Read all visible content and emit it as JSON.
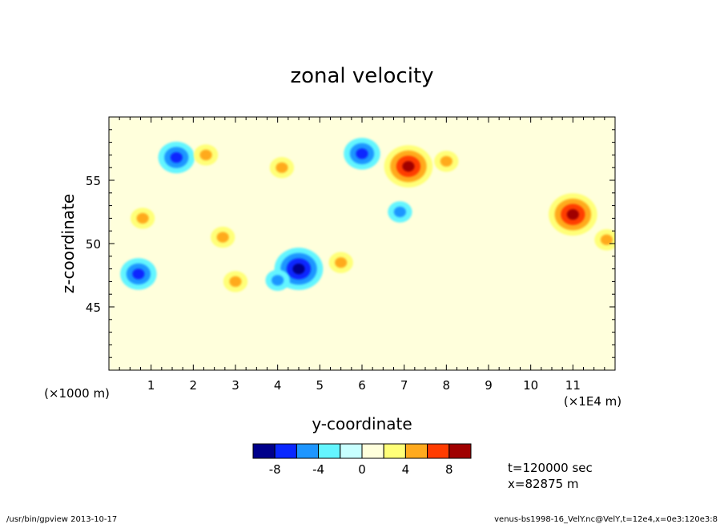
{
  "chart_data": {
    "type": "heatmap",
    "title": "zonal velocity",
    "xlabel": "y-coordinate",
    "ylabel": "z-coordinate",
    "x_scale_note": "(×1E4 m)",
    "y_scale_note": "(×1000 m)",
    "xlim": [
      0,
      12
    ],
    "ylim": [
      40,
      60
    ],
    "x_ticks": [
      1,
      2,
      3,
      4,
      5,
      6,
      7,
      8,
      9,
      10,
      11
    ],
    "y_ticks": [
      45,
      50,
      55
    ],
    "colorbar": {
      "levels": [
        -10,
        -8,
        -6,
        -4,
        -2,
        0,
        2,
        4,
        6,
        8,
        10
      ],
      "tick_labels": [
        "-8",
        "-4",
        "0",
        "4",
        "8"
      ],
      "tick_values": [
        -8,
        -4,
        0,
        4,
        8
      ],
      "colors": [
        "#00008b",
        "#0a28ff",
        "#1e96ff",
        "#64f5ff",
        "#c8ffff",
        "#ffffdc",
        "#ffff78",
        "#ffaa1e",
        "#ff3c00",
        "#a00000"
      ]
    },
    "features": [
      {
        "label": "max",
        "y": 7.1,
        "z": 56.1,
        "value": 8.5
      },
      {
        "label": "max",
        "y": 11.0,
        "z": 52.3,
        "value": 8.0
      },
      {
        "label": "min",
        "y": 4.5,
        "z": 48.0,
        "value": -8.5
      },
      {
        "label": "min",
        "y": 1.6,
        "z": 56.8,
        "value": -6.5
      },
      {
        "label": "min",
        "y": 0.7,
        "z": 47.6,
        "value": -7.0
      },
      {
        "label": "min",
        "y": 6.0,
        "z": 57.1,
        "value": -6.0
      },
      {
        "label": "max",
        "y": 0.8,
        "z": 52.0,
        "value": 5.0
      },
      {
        "label": "max",
        "y": 2.3,
        "z": 57.0,
        "value": 5.0
      },
      {
        "label": "max",
        "y": 4.1,
        "z": 56.0,
        "value": 5.0
      },
      {
        "label": "max",
        "y": 5.5,
        "z": 48.5,
        "value": 5.0
      },
      {
        "label": "max",
        "y": 8.0,
        "z": 56.5,
        "value": 5.0
      },
      {
        "label": "max",
        "y": 11.8,
        "z": 50.3,
        "value": 5.0
      },
      {
        "label": "max",
        "y": 3.0,
        "z": 47.0,
        "value": 4.5
      },
      {
        "label": "max",
        "y": 2.7,
        "z": 50.5,
        "value": 4.5
      },
      {
        "label": "min",
        "y": 6.9,
        "z": 52.5,
        "value": -5.0
      },
      {
        "label": "min",
        "y": 4.0,
        "z": 47.1,
        "value": -5.0
      }
    ]
  },
  "annotations": {
    "time": "t=120000 sec",
    "position": "x=82875 m"
  },
  "footer": {
    "left": "/usr/bin/gpview   2013-10-17",
    "right": "venus-bs1998-16_VelY.nc@VelY,t=12e4,x=0e3:120e3:8"
  }
}
